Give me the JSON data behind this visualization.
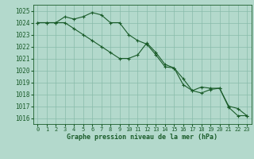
{
  "title": "Graphe pression niveau de la mer (hPa)",
  "background_color": "#b3d9cc",
  "grid_color": "#88bbaa",
  "line_color": "#1a5c2a",
  "text_color": "#1a5c2a",
  "ylim": [
    1015.5,
    1025.5
  ],
  "xlim": [
    -0.5,
    23.5
  ],
  "yticks": [
    1016,
    1017,
    1018,
    1019,
    1020,
    1021,
    1022,
    1023,
    1024,
    1025
  ],
  "xticks": [
    0,
    1,
    2,
    3,
    4,
    5,
    6,
    7,
    8,
    9,
    10,
    11,
    12,
    13,
    14,
    15,
    16,
    17,
    18,
    19,
    20,
    21,
    22,
    23
  ],
  "series1_x": [
    0,
    1,
    2,
    3,
    4,
    5,
    6,
    7,
    8,
    9,
    10,
    11,
    12,
    13,
    14,
    15,
    16,
    17,
    18,
    19,
    20,
    21,
    22,
    23
  ],
  "series1_y": [
    1024.0,
    1024.0,
    1024.0,
    1024.5,
    1024.3,
    1024.5,
    1024.85,
    1024.65,
    1024.0,
    1024.0,
    1023.0,
    1022.5,
    1022.2,
    1021.3,
    1020.3,
    1020.2,
    1019.3,
    1018.3,
    1018.6,
    1018.5,
    1018.5,
    1016.9,
    1016.2,
    1016.2
  ],
  "series2_x": [
    0,
    1,
    2,
    3,
    4,
    5,
    6,
    7,
    8,
    9,
    10,
    11,
    12,
    13,
    14,
    15,
    16,
    17,
    18,
    19,
    20,
    21,
    22,
    23
  ],
  "series2_y": [
    1024.0,
    1024.0,
    1024.0,
    1024.0,
    1023.5,
    1023.0,
    1022.5,
    1022.0,
    1021.5,
    1021.0,
    1021.0,
    1021.3,
    1022.3,
    1021.5,
    1020.5,
    1020.2,
    1018.8,
    1018.3,
    1018.1,
    1018.4,
    1018.5,
    1017.0,
    1016.8,
    1016.2
  ]
}
